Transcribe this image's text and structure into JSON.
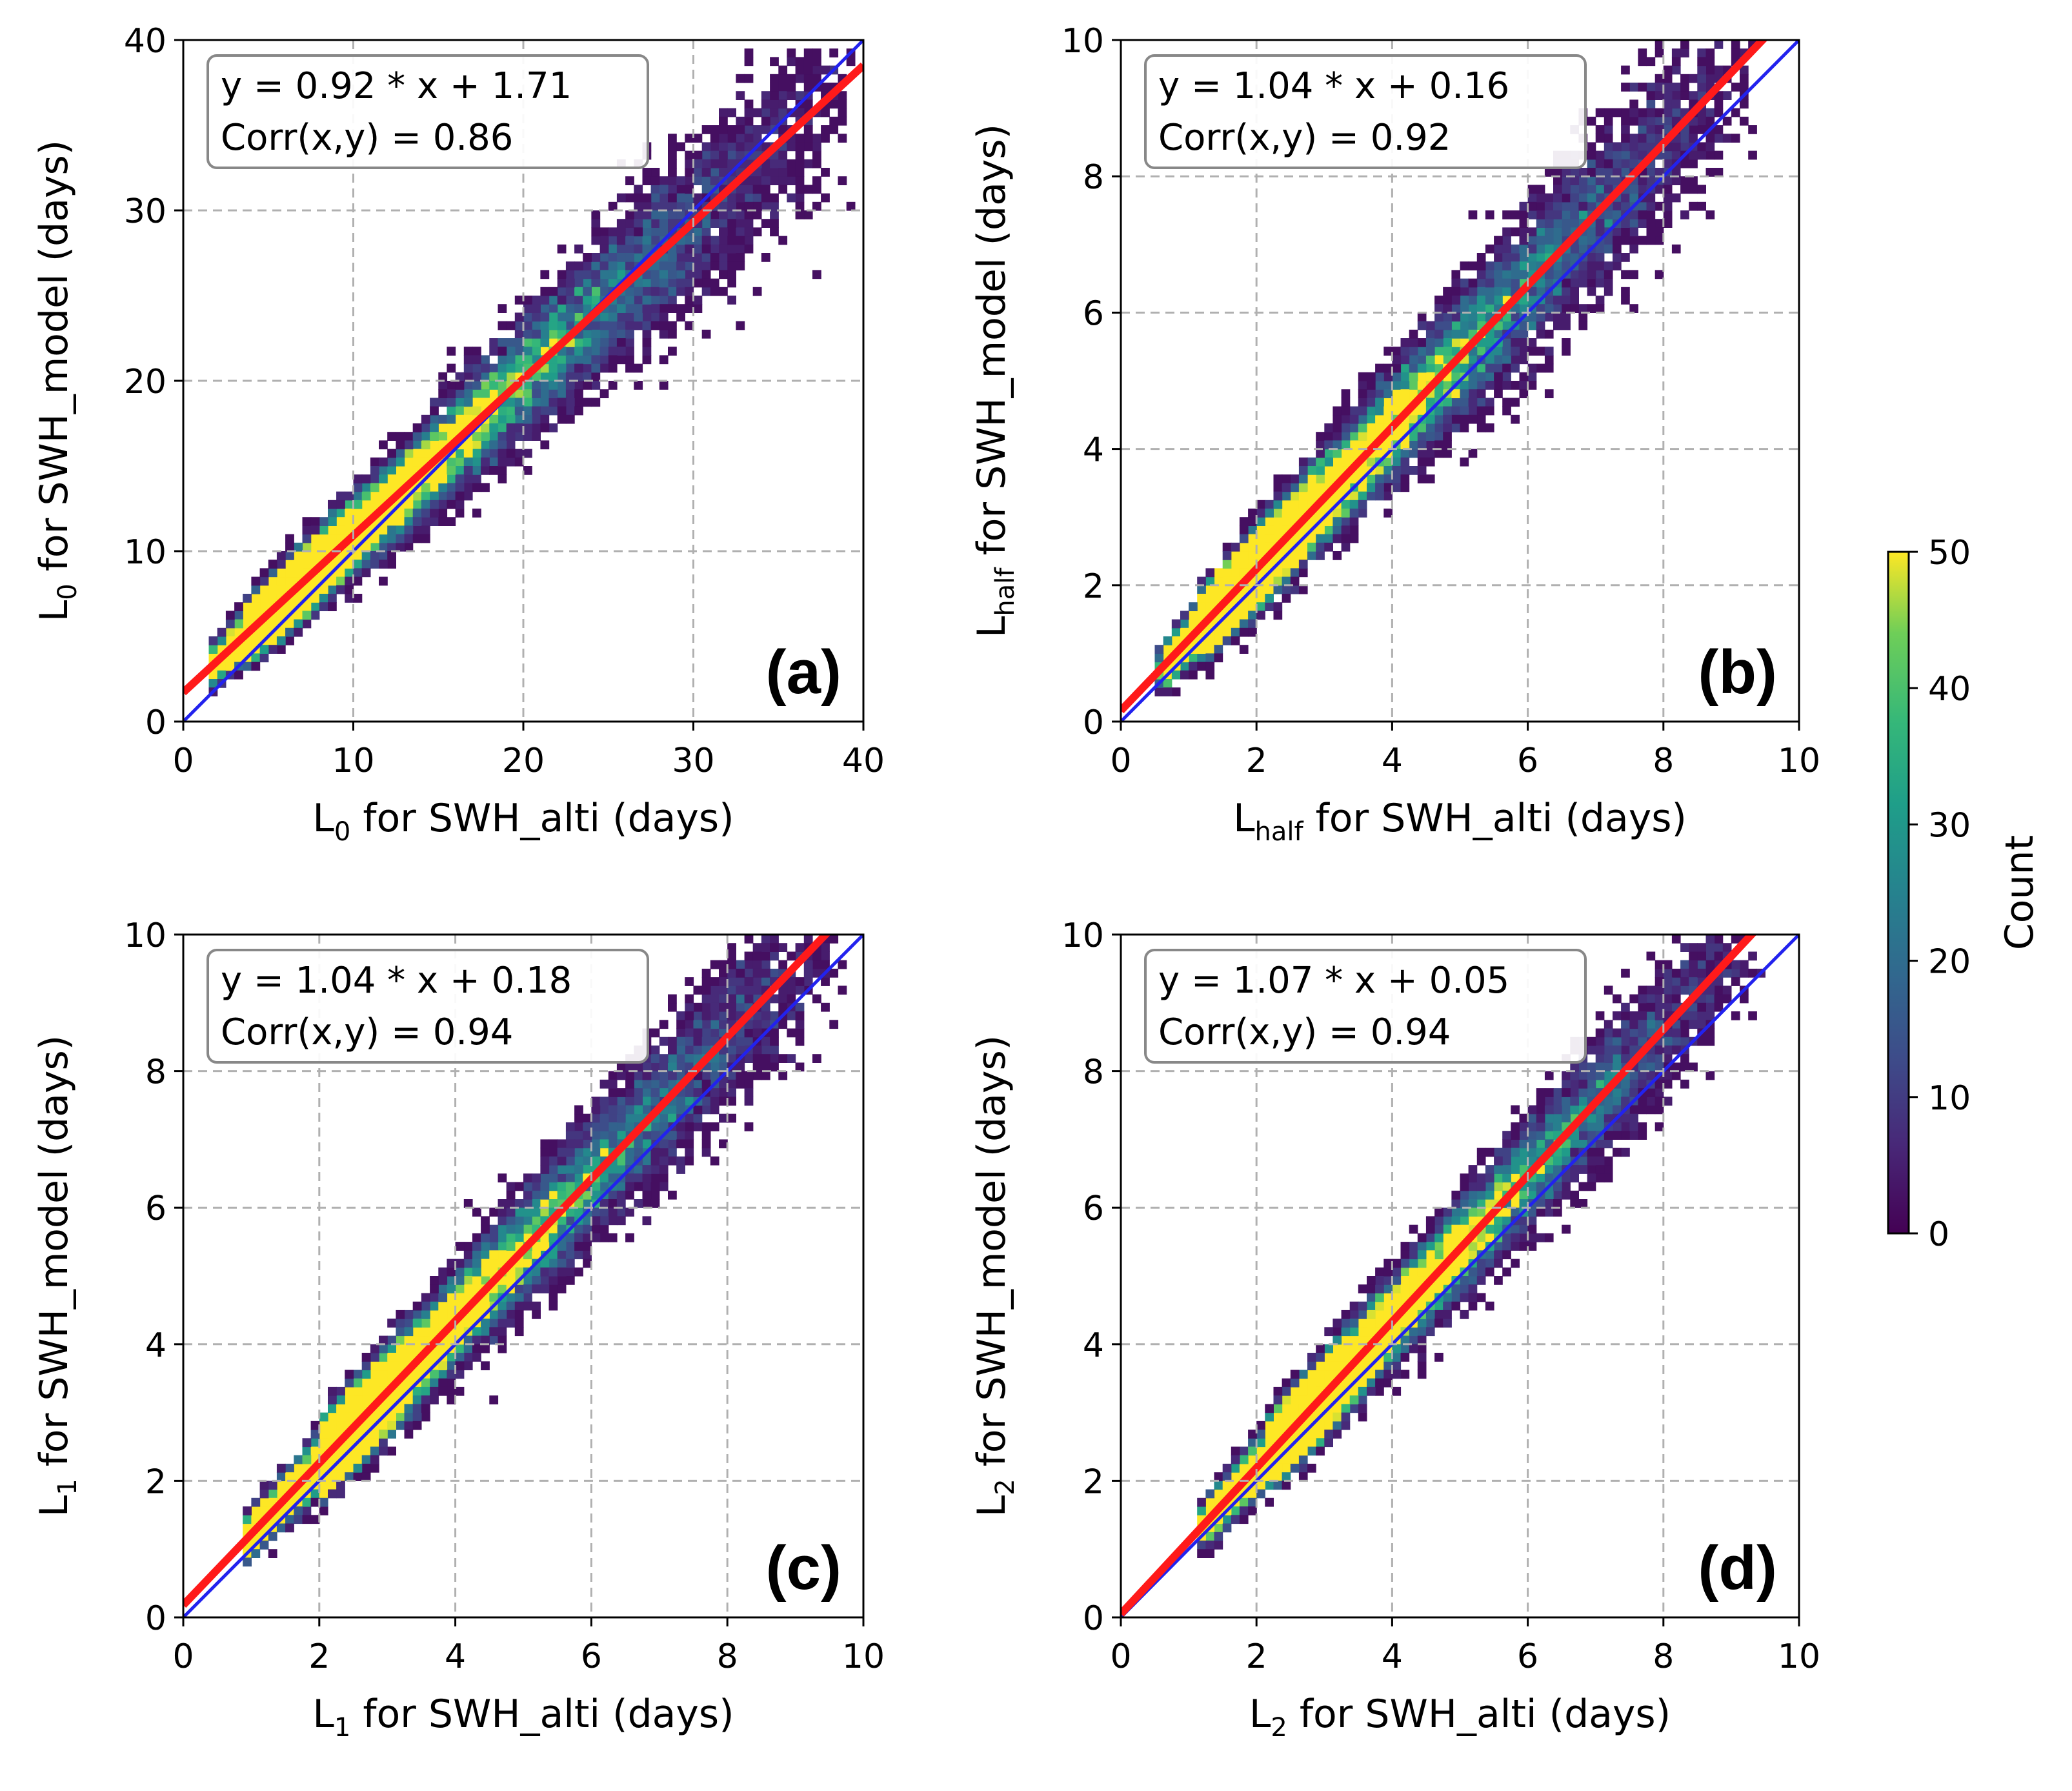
{
  "figure": {
    "colorbar": {
      "label": "Count",
      "min": 0,
      "max": 50,
      "ticks": [
        0,
        10,
        20,
        30,
        40,
        50
      ],
      "colormap": "viridis"
    },
    "colors": {
      "fit_line": "#2222ee",
      "one_to_one_line": "#ff1a1a",
      "grid": "#b0b0b0"
    }
  },
  "chart_data": [
    {
      "type": "heatmap",
      "panel": "(a)",
      "xlabel": {
        "base": "L",
        "sub": "0",
        "rest": " for SWH_alti (days)"
      },
      "ylabel": {
        "base": "L",
        "sub": "0",
        "rest": " for SWH_model (days)"
      },
      "xlim": [
        0,
        40
      ],
      "ylim": [
        0,
        40
      ],
      "xticks": [
        0,
        10,
        20,
        30,
        40
      ],
      "yticks": [
        0,
        10,
        20,
        30,
        40
      ],
      "fit": {
        "slope": 0.92,
        "intercept": 1.71,
        "corr": 0.86
      },
      "stats_lines": [
        "y = 0.92 * x + 1.71",
        "Corr(x,y) = 0.86"
      ],
      "density_min": 1.5,
      "density_max": 40,
      "spread": 0.19,
      "peak_center": 3.5,
      "one_to_one_line": [
        [
          0,
          0
        ],
        [
          40,
          40
        ]
      ]
    },
    {
      "type": "heatmap",
      "panel": "(b)",
      "xlabel": {
        "base": "L",
        "sub": "half",
        "rest": " for SWH_alti (days)"
      },
      "ylabel": {
        "base": "L",
        "sub": "half",
        "rest": " for SWH_model (days)"
      },
      "xlim": [
        0,
        10
      ],
      "ylim": [
        0,
        10
      ],
      "xticks": [
        0,
        2,
        4,
        6,
        8,
        10
      ],
      "yticks": [
        0,
        2,
        4,
        6,
        8,
        10
      ],
      "fit": {
        "slope": 1.04,
        "intercept": 0.16,
        "corr": 0.92
      },
      "stats_lines": [
        "y = 1.04 * x + 0.16",
        "Corr(x,y) = 0.92"
      ],
      "density_min": 0.6,
      "density_max": 9.5,
      "spread": 0.2,
      "peak_center": 1.2,
      "one_to_one_line": [
        [
          0,
          0
        ],
        [
          10,
          10
        ]
      ]
    },
    {
      "type": "heatmap",
      "panel": "(c)",
      "xlabel": {
        "base": "L",
        "sub": "1",
        "rest": " for SWH_alti (days)"
      },
      "ylabel": {
        "base": "L",
        "sub": "1",
        "rest": " for SWH_model (days)"
      },
      "xlim": [
        0,
        10
      ],
      "ylim": [
        0,
        10
      ],
      "xticks": [
        0,
        2,
        4,
        6,
        8,
        10
      ],
      "yticks": [
        0,
        2,
        4,
        6,
        8,
        10
      ],
      "fit": {
        "slope": 1.04,
        "intercept": 0.18,
        "corr": 0.94
      },
      "stats_lines": [
        "y = 1.04 * x + 0.18",
        "Corr(x,y) = 0.94"
      ],
      "density_min": 0.9,
      "density_max": 10,
      "spread": 0.17,
      "peak_center": 2.0,
      "one_to_one_line": [
        [
          0,
          0
        ],
        [
          10,
          10
        ]
      ]
    },
    {
      "type": "heatmap",
      "panel": "(d)",
      "xlabel": {
        "base": "L",
        "sub": "2",
        "rest": " for SWH_alti (days)"
      },
      "ylabel": {
        "base": "L",
        "sub": "2",
        "rest": " for SWH_model (days)"
      },
      "xlim": [
        0,
        10
      ],
      "ylim": [
        0,
        10
      ],
      "xticks": [
        0,
        2,
        4,
        6,
        8,
        10
      ],
      "yticks": [
        0,
        2,
        4,
        6,
        8,
        10
      ],
      "fit": {
        "slope": 1.07,
        "intercept": 0.05,
        "corr": 0.94
      },
      "stats_lines": [
        "y = 1.07 * x + 0.05",
        "Corr(x,y) = 0.94"
      ],
      "density_min": 1.2,
      "density_max": 9.5,
      "spread": 0.15,
      "peak_center": 2.2,
      "one_to_one_line": [
        [
          0,
          0
        ],
        [
          10,
          10
        ]
      ]
    }
  ]
}
